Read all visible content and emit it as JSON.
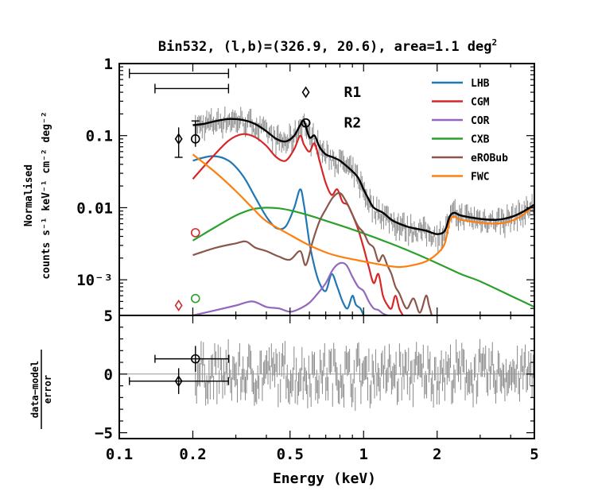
{
  "chart_data": {
    "type": "line",
    "title": "Bin532, (l,b)=(326.9, 20.6), area=1.1 deg",
    "title_sup": "2",
    "xlabel": "Energy (keV)",
    "x_scale": "log",
    "xlim": [
      0.1,
      5
    ],
    "x_ticks": [
      {
        "value": 0.1,
        "label": "0.1"
      },
      {
        "value": 0.2,
        "label": "0.2"
      },
      {
        "value": 0.5,
        "label": "0.5"
      },
      {
        "value": 1,
        "label": "1"
      },
      {
        "value": 2,
        "label": "2"
      },
      {
        "value": 5,
        "label": "5"
      }
    ],
    "top_panel": {
      "ylabel_line1": "Normalised",
      "ylabel_line2": "counts s⁻¹ keV⁻¹ cm⁻² deg⁻²",
      "y_scale": "log",
      "ylim": [
        0.00032,
        1
      ],
      "y_ticks": [
        {
          "value": 1,
          "label": "1"
        },
        {
          "value": 0.1,
          "label": "0.1"
        },
        {
          "value": 0.01,
          "label": "0.01"
        },
        {
          "value": 0.001,
          "label": "10⁻³"
        }
      ],
      "legend": [
        {
          "name": "LHB",
          "color": "#1f77b4"
        },
        {
          "name": "CGM",
          "color": "#d62728"
        },
        {
          "name": "COR",
          "color": "#9467bd"
        },
        {
          "name": "CXB",
          "color": "#2ca02c"
        },
        {
          "name": "eROBub",
          "color": "#8c564b"
        },
        {
          "name": "FWC",
          "color": "#ff7f0e"
        }
      ],
      "region_labels": [
        {
          "label": "R1",
          "marker": "diamond",
          "marker_x": 0.58,
          "marker_y": 0.4
        },
        {
          "label": "R2",
          "marker": "circle",
          "marker_x": 0.58,
          "marker_y": 0.15
        }
      ],
      "series": [
        {
          "name": "LHB",
          "color": "#1f77b4",
          "x": [
            0.2,
            0.24,
            0.28,
            0.32,
            0.36,
            0.4,
            0.44,
            0.48,
            0.52,
            0.55,
            0.57,
            0.6,
            0.63,
            0.66,
            0.7,
            0.74,
            0.78,
            0.82,
            0.86,
            0.9,
            0.93,
            0.97,
            1.0
          ],
          "y": [
            0.045,
            0.052,
            0.045,
            0.028,
            0.014,
            0.0075,
            0.0052,
            0.0055,
            0.01,
            0.018,
            0.011,
            0.0033,
            0.0015,
            0.0009,
            0.0007,
            0.0012,
            0.0008,
            0.0005,
            0.0004,
            0.0006,
            0.00045,
            0.0004,
            0.00032
          ]
        },
        {
          "name": "CGM",
          "color": "#d62728",
          "x": [
            0.2,
            0.24,
            0.28,
            0.32,
            0.36,
            0.4,
            0.44,
            0.48,
            0.52,
            0.55,
            0.57,
            0.6,
            0.63,
            0.66,
            0.7,
            0.74,
            0.78,
            0.82,
            0.86,
            0.9,
            0.95,
            1.0,
            1.05,
            1.1,
            1.15,
            1.2,
            1.25,
            1.3,
            1.35,
            1.4,
            1.45
          ],
          "y": [
            0.025,
            0.05,
            0.085,
            0.105,
            0.095,
            0.072,
            0.05,
            0.045,
            0.065,
            0.1,
            0.075,
            0.06,
            0.078,
            0.045,
            0.022,
            0.015,
            0.018,
            0.012,
            0.011,
            0.008,
            0.005,
            0.0028,
            0.0015,
            0.0009,
            0.0012,
            0.0006,
            0.00045,
            0.0004,
            0.0006,
            0.0004,
            0.00032
          ]
        },
        {
          "name": "COR",
          "color": "#9467bd",
          "x": [
            0.2,
            0.25,
            0.3,
            0.35,
            0.4,
            0.45,
            0.5,
            0.55,
            0.6,
            0.65,
            0.7,
            0.75,
            0.8,
            0.85,
            0.9,
            0.95,
            1.0,
            1.05,
            1.1,
            1.15,
            1.2,
            1.25
          ],
          "y": [
            0.00032,
            0.00038,
            0.00044,
            0.0005,
            0.00042,
            0.0004,
            0.00036,
            0.0004,
            0.00048,
            0.00065,
            0.0009,
            0.0014,
            0.0017,
            0.0016,
            0.0011,
            0.0008,
            0.0007,
            0.0005,
            0.0004,
            0.00038,
            0.00034,
            0.00032
          ]
        },
        {
          "name": "CXB",
          "color": "#2ca02c",
          "x": [
            0.2,
            0.25,
            0.3,
            0.35,
            0.4,
            0.45,
            0.5,
            0.6,
            0.7,
            0.8,
            1.0,
            1.2,
            1.5,
            2.0,
            2.5,
            3.0,
            4.0,
            5.0
          ],
          "y": [
            0.0035,
            0.0055,
            0.0078,
            0.0095,
            0.01,
            0.0098,
            0.0092,
            0.0078,
            0.0066,
            0.0057,
            0.0044,
            0.0035,
            0.0026,
            0.0017,
            0.0012,
            0.00095,
            0.0006,
            0.00042
          ]
        },
        {
          "name": "eROBub",
          "color": "#8c564b",
          "x": [
            0.2,
            0.25,
            0.3,
            0.33,
            0.36,
            0.4,
            0.45,
            0.5,
            0.55,
            0.58,
            0.62,
            0.66,
            0.7,
            0.75,
            0.8,
            0.85,
            0.9,
            0.95,
            1.0,
            1.05,
            1.1,
            1.15,
            1.2,
            1.25,
            1.3,
            1.35,
            1.4,
            1.5,
            1.6,
            1.7,
            1.8,
            1.85,
            1.9
          ],
          "y": [
            0.0022,
            0.0028,
            0.0032,
            0.0034,
            0.0028,
            0.0025,
            0.0021,
            0.0019,
            0.0025,
            0.0016,
            0.0035,
            0.0065,
            0.0095,
            0.014,
            0.016,
            0.012,
            0.008,
            0.0055,
            0.0045,
            0.0032,
            0.0028,
            0.0018,
            0.0022,
            0.0016,
            0.0012,
            0.0008,
            0.00065,
            0.0004,
            0.00055,
            0.00035,
            0.0006,
            0.00045,
            0.00032
          ]
        },
        {
          "name": "FWC",
          "color": "#ff7f0e",
          "x": [
            0.2,
            0.25,
            0.3,
            0.35,
            0.4,
            0.5,
            0.6,
            0.7,
            0.8,
            1.0,
            1.2,
            1.4,
            1.6,
            1.8,
            2.0,
            2.15,
            2.25,
            2.35,
            2.5,
            3.0,
            3.5,
            4.0,
            4.5,
            5.0
          ],
          "y": [
            0.055,
            0.03,
            0.017,
            0.01,
            0.0065,
            0.0042,
            0.003,
            0.0024,
            0.0021,
            0.0018,
            0.0016,
            0.0015,
            0.0016,
            0.0018,
            0.0023,
            0.0032,
            0.0065,
            0.0075,
            0.0068,
            0.0062,
            0.006,
            0.0065,
            0.008,
            0.011
          ]
        },
        {
          "name": "Total model",
          "color": "#000000",
          "x": [
            0.2,
            0.22,
            0.25,
            0.28,
            0.32,
            0.36,
            0.4,
            0.44,
            0.48,
            0.52,
            0.55,
            0.57,
            0.6,
            0.63,
            0.66,
            0.7,
            0.75,
            0.8,
            0.85,
            0.9,
            0.95,
            1.0,
            1.05,
            1.1,
            1.2,
            1.3,
            1.4,
            1.5,
            1.6,
            1.8,
            2.0,
            2.15,
            2.25,
            2.35,
            2.5,
            3.0,
            3.5,
            4.0,
            4.5,
            5.0
          ],
          "y": [
            0.14,
            0.145,
            0.16,
            0.17,
            0.165,
            0.145,
            0.115,
            0.09,
            0.083,
            0.1,
            0.14,
            0.16,
            0.095,
            0.1,
            0.07,
            0.055,
            0.05,
            0.045,
            0.038,
            0.032,
            0.026,
            0.018,
            0.013,
            0.01,
            0.0085,
            0.0068,
            0.006,
            0.0055,
            0.0052,
            0.0048,
            0.0043,
            0.0048,
            0.0075,
            0.0085,
            0.0078,
            0.007,
            0.0068,
            0.0074,
            0.0088,
            0.011
          ]
        }
      ],
      "circle_points": [
        {
          "series": "Data",
          "x": 0.205,
          "y": 0.09,
          "color": "#000000"
        },
        {
          "series": "CGM",
          "x": 0.205,
          "y": 0.0045,
          "color": "#d62728"
        },
        {
          "series": "CXB",
          "x": 0.205,
          "y": 0.00055,
          "color": "#2ca02c"
        }
      ],
      "diamond_points": [
        {
          "series": "Data",
          "x": 0.175,
          "y": 0.09,
          "y_low": 0.05,
          "y_high": 0.13,
          "color": "#000000"
        },
        {
          "series": "CGM",
          "x": 0.175,
          "y": 0.00044,
          "color": "#d62728"
        }
      ],
      "circle_xerr": {
        "x_low": 0.14,
        "x_high": 0.28,
        "y": 0.45
      },
      "diamond_xerr": {
        "x_low": 0.11,
        "x_high": 0.28,
        "y": 0.73
      }
    },
    "bottom_panel": {
      "ylabel_num": "data−model",
      "ylabel_den": "error",
      "ylim": [
        -5.5,
        5
      ],
      "y_ticks": [
        {
          "value": 5,
          "label": "5"
        },
        {
          "value": 0,
          "label": "0"
        },
        {
          "value": -5,
          "label": "−5"
        }
      ],
      "circle_residual": {
        "x": 0.205,
        "y": 1.3,
        "err": 1.1,
        "x_low": 0.14,
        "x_high": 0.28
      },
      "diamond_residual": {
        "x": 0.175,
        "y": -0.6,
        "err": 1.1,
        "x_low": 0.11,
        "x_high": 0.28
      }
    }
  }
}
